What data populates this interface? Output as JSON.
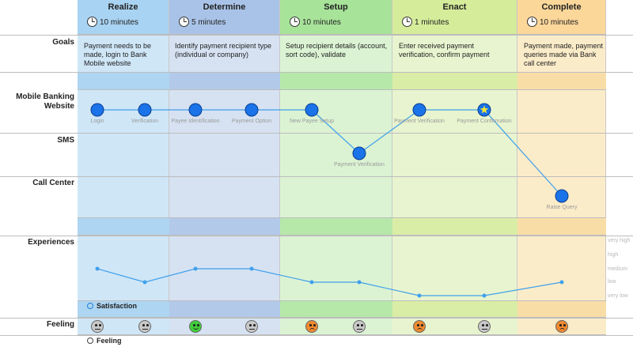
{
  "stages": [
    {
      "name": "Realize",
      "time": "10 minutes",
      "goal": "Payment needs to be made, login to Bank Mobile website",
      "color": "#cfe6f7",
      "head": "#a9d3f2",
      "band": "#aed5f1"
    },
    {
      "name": "Determine",
      "time": "5 minutes",
      "goal": "Identify payment recipient type (individual or company)",
      "color": "#d6e2f2",
      "head": "#a9c3e8",
      "band": "#b3c9ea"
    },
    {
      "name": "Setup",
      "time": "10 minutes",
      "goal": "Setup recipient details (account, sort code), validate",
      "color": "#dbf3d3",
      "head": "#a8e39a",
      "band": "#b6e8a9"
    },
    {
      "name": "Enact",
      "time": "1 minutes",
      "goal": "Enter received payment verification, confirm payment",
      "color": "#e8f4cf",
      "head": "#d5ec9a",
      "band": "#d9eda6"
    },
    {
      "name": "Complete",
      "time": "10 minutes",
      "goal": "Payment made, payment queries made via Bank call center",
      "color": "#fbecc9",
      "head": "#fcd79a",
      "band": "#f9dda7"
    }
  ],
  "rows": {
    "goals": "Goals",
    "website": "Mobile Banking Website",
    "sms": "SMS",
    "call_center": "Call Center",
    "experiences": "Experiences",
    "feeling": "Feeling"
  },
  "touchpoints": [
    {
      "label": "Login",
      "channel": "website",
      "stage": 0,
      "highlight": false
    },
    {
      "label": "Verification",
      "channel": "website",
      "stage": 0,
      "highlight": false
    },
    {
      "label": "Payee Identification",
      "channel": "website",
      "stage": 1,
      "highlight": false
    },
    {
      "label": "Payment Option",
      "channel": "website",
      "stage": 1,
      "highlight": false
    },
    {
      "label": "New Payee Setup",
      "channel": "website",
      "stage": 2,
      "highlight": false
    },
    {
      "label": "Payment Verification",
      "channel": "sms",
      "stage": 2,
      "highlight": false
    },
    {
      "label": "Payment Verification",
      "channel": "website",
      "stage": 3,
      "highlight": false
    },
    {
      "label": "Payment Confirmation",
      "channel": "website",
      "stage": 3,
      "highlight": true
    },
    {
      "label": "Raise Query",
      "channel": "call_center",
      "stage": 4,
      "highlight": false
    }
  ],
  "experience_levels": [
    "very high",
    "high",
    "medium",
    "low",
    "very low"
  ],
  "satisfaction": [
    1.0,
    0.0,
    1.0,
    1.0,
    0.0,
    0.0,
    -1.0,
    -1.0,
    0.0
  ],
  "feelings": [
    "neutral",
    "neutral",
    "happy",
    "neutral",
    "sad",
    "neutral",
    "sad",
    "neutral",
    "sad"
  ],
  "legend": {
    "satisfaction": "Satisfaction",
    "feeling": "Feeling"
  },
  "colors": {
    "touchpoint": "#1a73e8",
    "line": "#3fa0ec",
    "star": "#f5e633",
    "happy": "#3fcf3a",
    "neutral": "#c8c8c8",
    "sad": "#f08a2e"
  }
}
